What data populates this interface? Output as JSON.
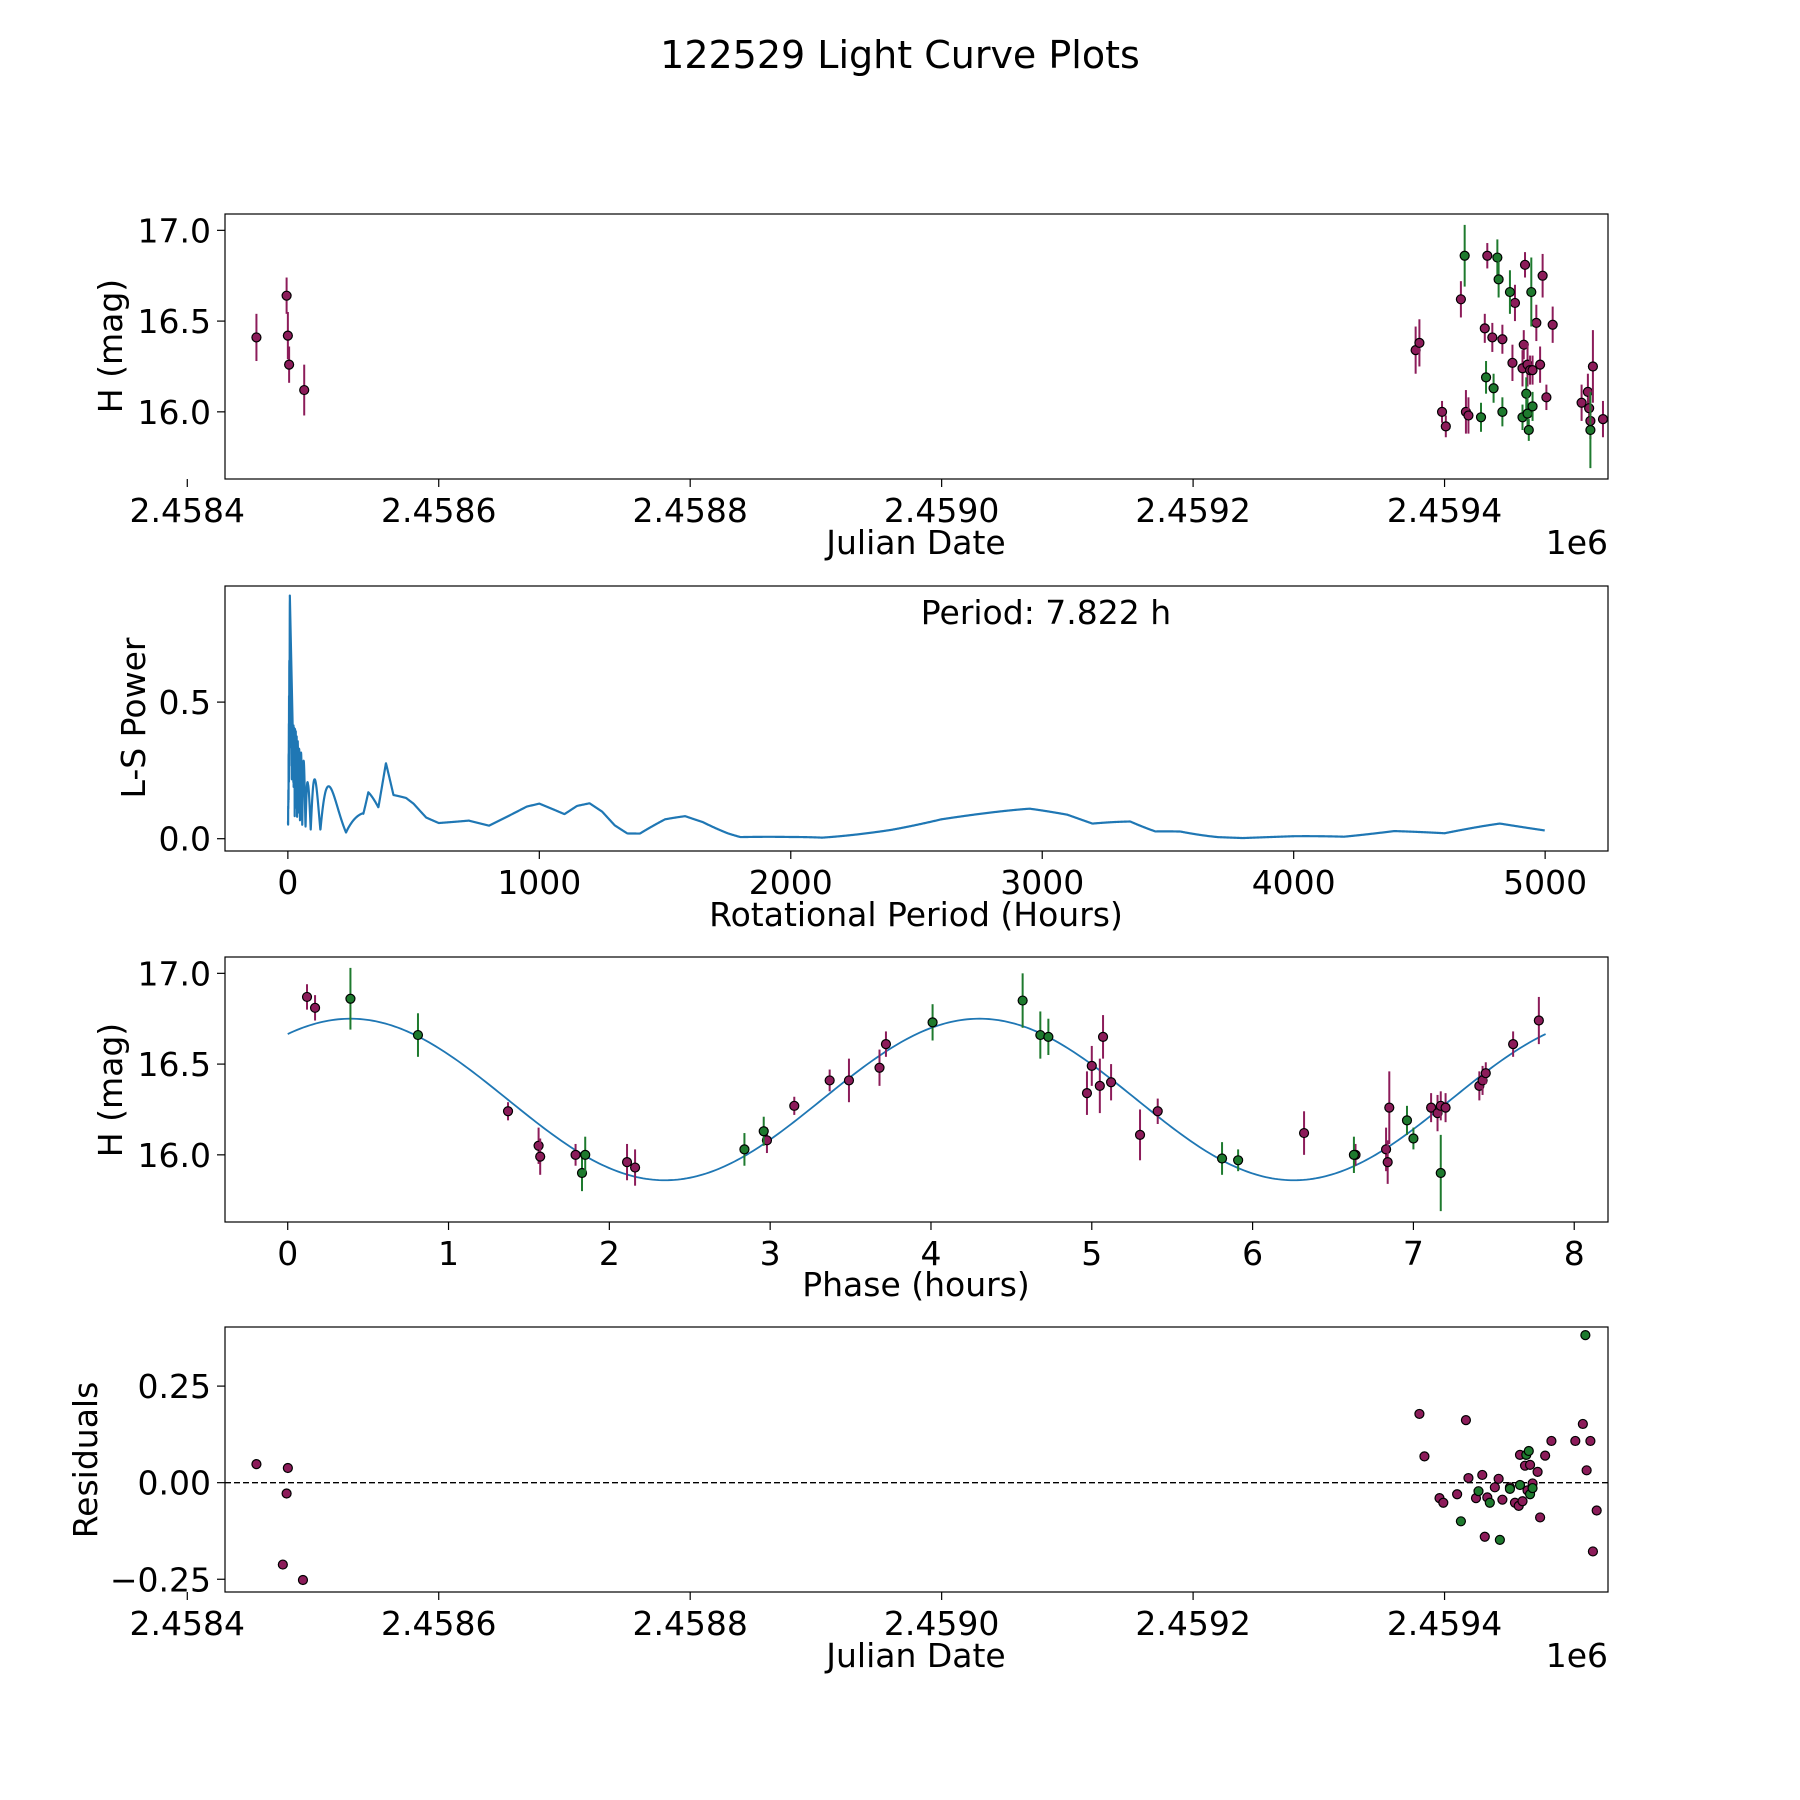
{
  "figure": {
    "title": "122529 Light Curve Plots",
    "colors": {
      "magenta": "#8c1c5a",
      "green": "#1e7a2e",
      "line": "#1f77b4"
    }
  },
  "chart_data": [
    {
      "type": "scatter",
      "id": "lightcurve",
      "title": "",
      "xlabel": "Julian Date",
      "ylabel": "H (mag)",
      "x_offset_label": "1e6",
      "xlim": [
        2458430,
        2459530
      ],
      "ylim": [
        15.63,
        17.09
      ],
      "xticks": [
        2458400,
        2458600,
        2458800,
        2459000,
        2459200,
        2459400
      ],
      "xtick_labels": [
        "2.4584",
        "2.4586",
        "2.4588",
        "2.4590",
        "2.4592",
        "2.4594"
      ],
      "yticks": [
        16.0,
        16.5,
        17.0
      ],
      "ytick_labels": [
        "16.0",
        "16.5",
        "17.0"
      ],
      "series": [
        {
          "name": "magenta",
          "color": "#8c1c5a",
          "points": [
            [
              2458455,
              16.41,
              0.13
            ],
            [
              2458479,
              16.64,
              0.1
            ],
            [
              2458480,
              16.42,
              0.13
            ],
            [
              2458481,
              16.26,
              0.1
            ],
            [
              2458493,
              16.12,
              0.14
            ],
            [
              2459377,
              16.34,
              0.13
            ],
            [
              2459380,
              16.38,
              0.13
            ],
            [
              2459398,
              16.0,
              0.06
            ],
            [
              2459401,
              15.92,
              0.06
            ],
            [
              2459413,
              16.62,
              0.1
            ],
            [
              2459417,
              16.0,
              0.12
            ],
            [
              2459419,
              15.98,
              0.1
            ],
            [
              2459432,
              16.46,
              0.08
            ],
            [
              2459434,
              16.86,
              0.07
            ],
            [
              2459438,
              16.41,
              0.08
            ],
            [
              2459446,
              16.4,
              0.08
            ],
            [
              2459454,
              16.27,
              0.1
            ],
            [
              2459456,
              16.6,
              0.1
            ],
            [
              2459462,
              16.24,
              0.1
            ],
            [
              2459463,
              16.37,
              0.08
            ],
            [
              2459464,
              16.81,
              0.07
            ],
            [
              2459466,
              16.26,
              0.12
            ],
            [
              2459468,
              16.23,
              0.08
            ],
            [
              2459470,
              16.23,
              0.08
            ],
            [
              2459473,
              16.49,
              0.1
            ],
            [
              2459476,
              16.26,
              0.1
            ],
            [
              2459478,
              16.75,
              0.12
            ],
            [
              2459481,
              16.08,
              0.07
            ],
            [
              2459486,
              16.48,
              0.1
            ],
            [
              2459509,
              16.05,
              0.1
            ],
            [
              2459514,
              16.11,
              0.1
            ],
            [
              2459515,
              16.02,
              0.08
            ],
            [
              2459516,
              15.95,
              0.1
            ],
            [
              2459518,
              16.25,
              0.2
            ],
            [
              2459526,
              15.96,
              0.1
            ]
          ]
        },
        {
          "name": "green",
          "color": "#1e7a2e",
          "points": [
            [
              2459416,
              16.86,
              0.17
            ],
            [
              2459429,
              15.97,
              0.08
            ],
            [
              2459433,
              16.19,
              0.09
            ],
            [
              2459439,
              16.13,
              0.08
            ],
            [
              2459442,
              16.85,
              0.1
            ],
            [
              2459443,
              16.73,
              0.1
            ],
            [
              2459446,
              16.0,
              0.08
            ],
            [
              2459452,
              16.66,
              0.12
            ],
            [
              2459462,
              15.97,
              0.07
            ],
            [
              2459465,
              16.1,
              0.09
            ],
            [
              2459466,
              15.99,
              0.1
            ],
            [
              2459467,
              15.9,
              0.06
            ],
            [
              2459469,
              16.66,
              0.19
            ],
            [
              2459470,
              16.03,
              0.08
            ],
            [
              2459516,
              15.9,
              0.21
            ]
          ]
        }
      ]
    },
    {
      "type": "line",
      "id": "periodogram",
      "title": "",
      "xlabel": "Rotational Period (Hours)",
      "ylabel": "L-S Power",
      "annotation": "Period: 7.822 h",
      "xlim": [
        -250,
        5250
      ],
      "ylim": [
        -0.045,
        0.925
      ],
      "xticks": [
        0,
        1000,
        2000,
        3000,
        4000,
        5000
      ],
      "xtick_labels": [
        "0",
        "1000",
        "2000",
        "3000",
        "4000",
        "5000"
      ],
      "yticks": [
        0.0,
        0.5
      ],
      "ytick_labels": [
        "0.0",
        "0.5"
      ],
      "color": "#1f77b4",
      "peak": {
        "period": 7.822,
        "power": 0.89
      },
      "envelope": [
        [
          0,
          0.0
        ],
        [
          8,
          0.89
        ],
        [
          14,
          0.56
        ],
        [
          20,
          0.42
        ],
        [
          30,
          0.4
        ],
        [
          45,
          0.33
        ],
        [
          60,
          0.3
        ],
        [
          80,
          0.2
        ],
        [
          100,
          0.22
        ],
        [
          150,
          0.2
        ],
        [
          200,
          0.17
        ],
        [
          250,
          0.14
        ],
        [
          300,
          0.12
        ],
        [
          320,
          0.2
        ],
        [
          360,
          0.12
        ],
        [
          390,
          0.28
        ],
        [
          420,
          0.16
        ],
        [
          470,
          0.15
        ],
        [
          500,
          0.13
        ],
        [
          550,
          0.08
        ],
        [
          600,
          0.06
        ],
        [
          720,
          0.07
        ],
        [
          800,
          0.05
        ],
        [
          950,
          0.12
        ],
        [
          1000,
          0.13
        ],
        [
          1050,
          0.11
        ],
        [
          1100,
          0.09
        ],
        [
          1150,
          0.12
        ],
        [
          1200,
          0.13
        ],
        [
          1250,
          0.1
        ],
        [
          1300,
          0.05
        ],
        [
          1350,
          0.02
        ],
        [
          1400,
          0.02
        ],
        [
          1500,
          0.08
        ],
        [
          1580,
          0.1
        ],
        [
          1650,
          0.08
        ],
        [
          1750,
          0.03
        ],
        [
          1800,
          0.01
        ],
        [
          2000,
          0.02
        ],
        [
          2200,
          0.04
        ],
        [
          2400,
          0.06
        ],
        [
          2600,
          0.09
        ],
        [
          2780,
          0.1
        ],
        [
          2950,
          0.11
        ],
        [
          3100,
          0.09
        ],
        [
          3200,
          0.06
        ],
        [
          3350,
          0.08
        ],
        [
          3450,
          0.04
        ],
        [
          3550,
          0.05
        ],
        [
          3700,
          0.02
        ],
        [
          3800,
          0.02
        ],
        [
          4000,
          0.02
        ],
        [
          4200,
          0.01
        ],
        [
          4400,
          0.03
        ],
        [
          4600,
          0.02
        ],
        [
          4820,
          0.06
        ],
        [
          5000,
          0.04
        ]
      ]
    },
    {
      "type": "scatter",
      "id": "phased",
      "title": "",
      "xlabel": "Phase (hours)",
      "ylabel": "H (mag)",
      "xlim": [
        -0.39,
        8.21
      ],
      "ylim": [
        15.63,
        17.09
      ],
      "xticks": [
        0,
        1,
        2,
        3,
        4,
        5,
        6,
        7,
        8
      ],
      "xtick_labels": [
        "0",
        "1",
        "2",
        "3",
        "4",
        "5",
        "6",
        "7",
        "8"
      ],
      "yticks": [
        16.0,
        16.5,
        17.0
      ],
      "ytick_labels": [
        "16.0",
        "16.5",
        "17.0"
      ],
      "fit": {
        "mean": 16.305,
        "amplitude": 0.445,
        "period": 3.911,
        "peak_phase": 0.39,
        "x_range": [
          0,
          7.822
        ],
        "color": "#1f77b4"
      },
      "series": [
        {
          "name": "magenta",
          "color": "#8c1c5a",
          "points": [
            [
              0.12,
              16.87,
              0.07
            ],
            [
              0.17,
              16.81,
              0.07
            ],
            [
              1.37,
              16.24,
              0.05
            ],
            [
              1.56,
              16.05,
              0.1
            ],
            [
              1.57,
              15.99,
              0.1
            ],
            [
              1.79,
              16.0,
              0.06
            ],
            [
              2.11,
              15.96,
              0.1
            ],
            [
              2.16,
              15.93,
              0.1
            ],
            [
              2.98,
              16.08,
              0.07
            ],
            [
              3.15,
              16.27,
              0.05
            ],
            [
              3.37,
              16.41,
              0.06
            ],
            [
              3.49,
              16.41,
              0.12
            ],
            [
              3.68,
              16.48,
              0.1
            ],
            [
              3.72,
              16.61,
              0.07
            ],
            [
              4.97,
              16.34,
              0.12
            ],
            [
              5.0,
              16.49,
              0.11
            ],
            [
              5.05,
              16.38,
              0.15
            ],
            [
              5.07,
              16.65,
              0.12
            ],
            [
              5.12,
              16.4,
              0.1
            ],
            [
              5.3,
              16.11,
              0.14
            ],
            [
              5.41,
              16.24,
              0.07
            ],
            [
              6.32,
              16.12,
              0.12
            ],
            [
              6.64,
              16.0,
              0.06
            ],
            [
              6.83,
              16.03,
              0.12
            ],
            [
              6.84,
              15.96,
              0.12
            ],
            [
              6.85,
              16.26,
              0.2
            ],
            [
              7.11,
              16.26,
              0.08
            ],
            [
              7.15,
              16.23,
              0.1
            ],
            [
              7.17,
              16.27,
              0.08
            ],
            [
              7.2,
              16.26,
              0.08
            ],
            [
              7.41,
              16.38,
              0.08
            ],
            [
              7.43,
              16.41,
              0.08
            ],
            [
              7.45,
              16.45,
              0.06
            ],
            [
              7.62,
              16.61,
              0.07
            ],
            [
              7.78,
              16.74,
              0.13
            ]
          ]
        },
        {
          "name": "green",
          "color": "#1e7a2e",
          "points": [
            [
              0.39,
              16.86,
              0.17
            ],
            [
              0.81,
              16.66,
              0.12
            ],
            [
              1.83,
              15.9,
              0.1
            ],
            [
              1.85,
              16.0,
              0.1
            ],
            [
              2.84,
              16.03,
              0.09
            ],
            [
              2.96,
              16.13,
              0.08
            ],
            [
              4.01,
              16.73,
              0.1
            ],
            [
              4.57,
              16.85,
              0.15
            ],
            [
              4.68,
              16.66,
              0.13
            ],
            [
              4.73,
              16.65,
              0.1
            ],
            [
              5.81,
              15.98,
              0.09
            ],
            [
              5.91,
              15.97,
              0.06
            ],
            [
              6.63,
              16.0,
              0.1
            ],
            [
              6.96,
              16.19,
              0.08
            ],
            [
              7.0,
              16.09,
              0.06
            ],
            [
              7.17,
              15.9,
              0.21
            ]
          ]
        }
      ]
    },
    {
      "type": "scatter",
      "id": "residuals",
      "title": "",
      "xlabel": "Julian Date",
      "ylabel": "Residuals",
      "x_offset_label": "1e6",
      "xlim": [
        2458430,
        2459530
      ],
      "ylim": [
        -0.283,
        0.403
      ],
      "xticks": [
        2458400,
        2458600,
        2458800,
        2459000,
        2459200,
        2459400
      ],
      "xtick_labels": [
        "2.4584",
        "2.4586",
        "2.4588",
        "2.4590",
        "2.4592",
        "2.4594"
      ],
      "yticks": [
        -0.25,
        0.0,
        0.25
      ],
      "ytick_labels": [
        "−0.25",
        "0.00",
        "0.25"
      ],
      "hline": 0.0,
      "series": [
        {
          "name": "magenta",
          "color": "#8c1c5a",
          "points": [
            [
              2458455,
              0.048
            ],
            [
              2458476,
              -0.212
            ],
            [
              2458479,
              -0.028
            ],
            [
              2458480,
              0.038
            ],
            [
              2458492,
              -0.252
            ],
            [
              2459380,
              0.178
            ],
            [
              2459384,
              0.068
            ],
            [
              2459396,
              -0.04
            ],
            [
              2459399,
              -0.052
            ],
            [
              2459410,
              -0.03
            ],
            [
              2459417,
              0.162
            ],
            [
              2459419,
              0.012
            ],
            [
              2459425,
              -0.04
            ],
            [
              2459430,
              0.02
            ],
            [
              2459432,
              -0.14
            ],
            [
              2459434,
              -0.038
            ],
            [
              2459440,
              -0.012
            ],
            [
              2459443,
              0.01
            ],
            [
              2459446,
              -0.044
            ],
            [
              2459452,
              -0.012
            ],
            [
              2459456,
              -0.052
            ],
            [
              2459459,
              -0.06
            ],
            [
              2459460,
              0.072
            ],
            [
              2459462,
              -0.048
            ],
            [
              2459464,
              0.044
            ],
            [
              2459466,
              -0.02
            ],
            [
              2459468,
              0.046
            ],
            [
              2459470,
              -0.002
            ],
            [
              2459474,
              0.028
            ],
            [
              2459476,
              -0.09
            ],
            [
              2459480,
              0.07
            ],
            [
              2459485,
              0.108
            ],
            [
              2459504,
              0.108
            ],
            [
              2459510,
              0.152
            ],
            [
              2459513,
              0.032
            ],
            [
              2459516,
              0.108
            ],
            [
              2459518,
              -0.178
            ],
            [
              2459521,
              -0.072
            ]
          ]
        },
        {
          "name": "green",
          "color": "#1e7a2e",
          "points": [
            [
              2459413,
              -0.1
            ],
            [
              2459427,
              -0.022
            ],
            [
              2459436,
              -0.052
            ],
            [
              2459444,
              -0.148
            ],
            [
              2459452,
              -0.016
            ],
            [
              2459460,
              -0.006
            ],
            [
              2459465,
              0.072
            ],
            [
              2459467,
              0.082
            ],
            [
              2459468,
              -0.03
            ],
            [
              2459470,
              -0.014
            ],
            [
              2459512,
              0.382
            ]
          ]
        }
      ]
    }
  ]
}
